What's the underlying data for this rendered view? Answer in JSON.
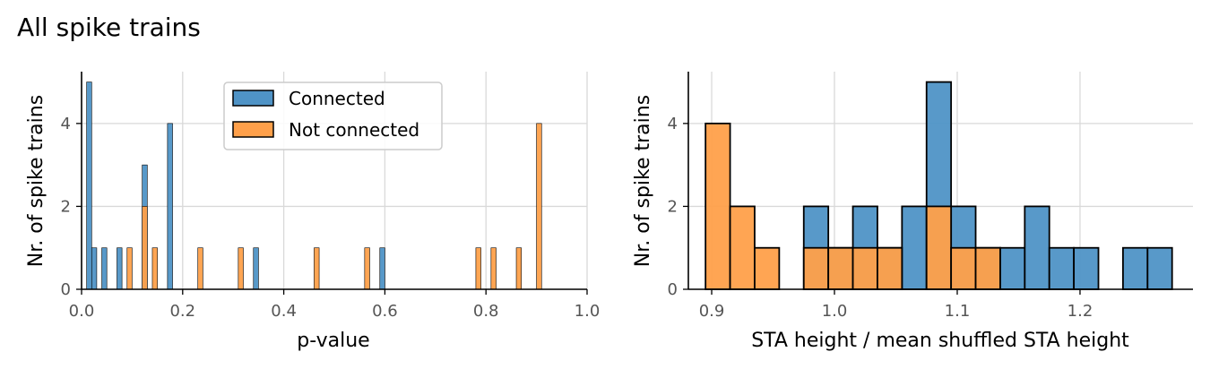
{
  "figure": {
    "title": "All spike trains",
    "colors": {
      "connected": "#4f93c6",
      "not_connected": "#ffa04a",
      "edge": "#000000",
      "grid": "#d9d9d9"
    }
  },
  "chart_data": [
    {
      "type": "bar",
      "subtype": "histogram",
      "xlabel": "p-value",
      "ylabel": "Nr. of spike trains",
      "xlim": [
        0.0,
        1.0
      ],
      "ylim": [
        0,
        5.25
      ],
      "xticks": [
        "0.0",
        "0.2",
        "0.4",
        "0.6",
        "0.8",
        "1.0"
      ],
      "yticks": [
        "0",
        "2",
        "4"
      ],
      "bin_width": 0.01,
      "grid": true,
      "legend": {
        "position": "top-center",
        "entries": [
          "Connected",
          "Not connected"
        ]
      },
      "series": [
        {
          "name": "Connected",
          "color": "#4f93c6",
          "bins": [
            {
              "x": 0.01,
              "count": 5
            },
            {
              "x": 0.02,
              "count": 1
            },
            {
              "x": 0.04,
              "count": 1
            },
            {
              "x": 0.07,
              "count": 1
            },
            {
              "x": 0.12,
              "count": 3
            },
            {
              "x": 0.17,
              "count": 4
            },
            {
              "x": 0.34,
              "count": 1
            },
            {
              "x": 0.59,
              "count": 1
            }
          ]
        },
        {
          "name": "Not connected",
          "color": "#ffa04a",
          "bins": [
            {
              "x": 0.09,
              "count": 1
            },
            {
              "x": 0.12,
              "count": 2
            },
            {
              "x": 0.14,
              "count": 1
            },
            {
              "x": 0.23,
              "count": 1
            },
            {
              "x": 0.31,
              "count": 1
            },
            {
              "x": 0.46,
              "count": 1
            },
            {
              "x": 0.56,
              "count": 1
            },
            {
              "x": 0.78,
              "count": 1
            },
            {
              "x": 0.81,
              "count": 1
            },
            {
              "x": 0.86,
              "count": 1
            },
            {
              "x": 0.9,
              "count": 4
            }
          ]
        }
      ]
    },
    {
      "type": "bar",
      "subtype": "histogram",
      "xlabel": "STA height / mean shuffled STA height",
      "ylabel": "Nr. of spike trains",
      "xlim": [
        0.881,
        1.292
      ],
      "ylim": [
        0,
        5.25
      ],
      "xticks": [
        "0.9",
        "1.0",
        "1.1",
        "1.2"
      ],
      "yticks": [
        "0",
        "2",
        "4"
      ],
      "bin_width": 0.02,
      "grid": true,
      "series": [
        {
          "name": "Connected",
          "color": "#4f93c6",
          "bins": [
            {
              "x0": 0.975,
              "count": 2
            },
            {
              "x0": 0.995,
              "count": 1
            },
            {
              "x0": 1.015,
              "count": 2
            },
            {
              "x0": 1.035,
              "count": 1
            },
            {
              "x0": 1.055,
              "count": 2
            },
            {
              "x0": 1.075,
              "count": 5
            },
            {
              "x0": 1.095,
              "count": 2
            },
            {
              "x0": 1.115,
              "count": 1
            },
            {
              "x0": 1.135,
              "count": 1
            },
            {
              "x0": 1.155,
              "count": 2
            },
            {
              "x0": 1.175,
              "count": 1
            },
            {
              "x0": 1.195,
              "count": 1
            },
            {
              "x0": 1.235,
              "count": 1
            },
            {
              "x0": 1.255,
              "count": 1
            }
          ]
        },
        {
          "name": "Not connected",
          "color": "#ffa04a",
          "bins": [
            {
              "x0": 0.895,
              "count": 4
            },
            {
              "x0": 0.915,
              "count": 2
            },
            {
              "x0": 0.935,
              "count": 1
            },
            {
              "x0": 0.975,
              "count": 1
            },
            {
              "x0": 0.995,
              "count": 1
            },
            {
              "x0": 1.015,
              "count": 1
            },
            {
              "x0": 1.035,
              "count": 1
            },
            {
              "x0": 1.075,
              "count": 2
            },
            {
              "x0": 1.095,
              "count": 1
            },
            {
              "x0": 1.115,
              "count": 1
            }
          ]
        }
      ]
    }
  ]
}
